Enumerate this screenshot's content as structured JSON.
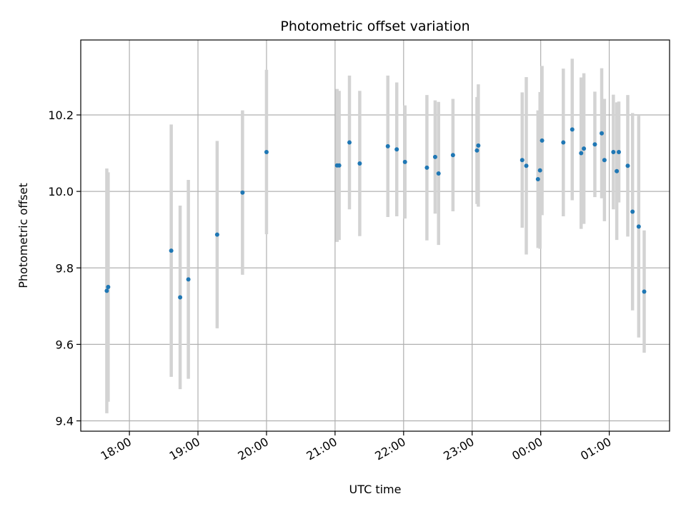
{
  "chart_data": {
    "type": "scatter",
    "title": "Photometric offset variation",
    "xlabel": "UTC time",
    "ylabel": "Photometric offset",
    "grid": true,
    "legend": "none",
    "colors": {
      "marker": "#1f77b4",
      "errorbar": "#d3d3d3",
      "grid": "#b0b0b0"
    },
    "x_unit": "hours from 18:00 UTC (times past midnight shown as > 6)",
    "xlim": [
      -0.71,
      7.88
    ],
    "ylim": [
      9.373,
      10.396
    ],
    "x_ticks": [
      {
        "x": 0,
        "label": "18:00"
      },
      {
        "x": 1,
        "label": "19:00"
      },
      {
        "x": 2,
        "label": "20:00"
      },
      {
        "x": 3,
        "label": "21:00"
      },
      {
        "x": 4,
        "label": "22:00"
      },
      {
        "x": 5,
        "label": "23:00"
      },
      {
        "x": 6,
        "label": "00:00"
      },
      {
        "x": 7,
        "label": "01:00"
      }
    ],
    "y_ticks": [
      {
        "y": 9.4,
        "label": "9.4"
      },
      {
        "y": 9.6,
        "label": "9.6"
      },
      {
        "y": 9.8,
        "label": "9.8"
      },
      {
        "y": 10.0,
        "label": "10.0"
      },
      {
        "y": 10.2,
        "label": "10.2"
      }
    ],
    "points": [
      {
        "x": -0.33,
        "y": 9.74,
        "err": 0.32
      },
      {
        "x": -0.31,
        "y": 9.75,
        "err": 0.3
      },
      {
        "x": 0.61,
        "y": 9.845,
        "err": 0.33
      },
      {
        "x": 0.74,
        "y": 9.723,
        "err": 0.24
      },
      {
        "x": 0.86,
        "y": 9.77,
        "err": 0.26
      },
      {
        "x": 1.28,
        "y": 9.887,
        "err": 0.245
      },
      {
        "x": 1.65,
        "y": 9.997,
        "err": 0.215
      },
      {
        "x": 2.0,
        "y": 10.103,
        "err": 0.215
      },
      {
        "x": 3.03,
        "y": 10.068,
        "err": 0.2
      },
      {
        "x": 3.06,
        "y": 10.068,
        "err": 0.195
      },
      {
        "x": 3.21,
        "y": 10.128,
        "err": 0.175
      },
      {
        "x": 3.36,
        "y": 10.073,
        "err": 0.19
      },
      {
        "x": 3.77,
        "y": 10.118,
        "err": 0.185
      },
      {
        "x": 3.9,
        "y": 10.11,
        "err": 0.175
      },
      {
        "x": 4.02,
        "y": 10.077,
        "err": 0.148
      },
      {
        "x": 4.34,
        "y": 10.062,
        "err": 0.19
      },
      {
        "x": 4.46,
        "y": 10.09,
        "err": 0.148
      },
      {
        "x": 4.51,
        "y": 10.047,
        "err": 0.187
      },
      {
        "x": 4.72,
        "y": 10.095,
        "err": 0.147
      },
      {
        "x": 5.07,
        "y": 10.107,
        "err": 0.14
      },
      {
        "x": 5.09,
        "y": 10.12,
        "err": 0.16
      },
      {
        "x": 5.73,
        "y": 10.082,
        "err": 0.177
      },
      {
        "x": 5.79,
        "y": 10.067,
        "err": 0.232
      },
      {
        "x": 5.96,
        "y": 10.032,
        "err": 0.18
      },
      {
        "x": 5.99,
        "y": 10.055,
        "err": 0.205
      },
      {
        "x": 6.02,
        "y": 10.133,
        "err": 0.195
      },
      {
        "x": 6.33,
        "y": 10.128,
        "err": 0.193
      },
      {
        "x": 6.46,
        "y": 10.162,
        "err": 0.185
      },
      {
        "x": 6.59,
        "y": 10.1,
        "err": 0.198
      },
      {
        "x": 6.63,
        "y": 10.112,
        "err": 0.197
      },
      {
        "x": 6.79,
        "y": 10.123,
        "err": 0.138
      },
      {
        "x": 6.89,
        "y": 10.152,
        "err": 0.17
      },
      {
        "x": 6.93,
        "y": 10.082,
        "err": 0.16
      },
      {
        "x": 7.06,
        "y": 10.103,
        "err": 0.15
      },
      {
        "x": 7.11,
        "y": 10.053,
        "err": 0.18
      },
      {
        "x": 7.14,
        "y": 10.103,
        "err": 0.132
      },
      {
        "x": 7.27,
        "y": 10.067,
        "err": 0.185
      },
      {
        "x": 7.34,
        "y": 9.947,
        "err": 0.258
      },
      {
        "x": 7.43,
        "y": 9.908,
        "err": 0.29
      },
      {
        "x": 7.51,
        "y": 9.738,
        "err": 0.16
      }
    ]
  }
}
